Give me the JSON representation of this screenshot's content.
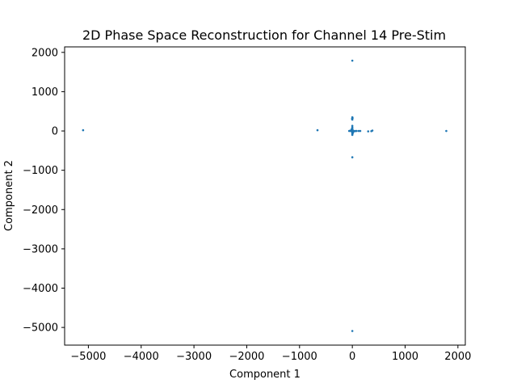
{
  "chart_data": {
    "type": "scatter",
    "title": "2D Phase Space Reconstruction for Channel 14 Pre-Stim",
    "xlabel": "Component 1",
    "ylabel": "Component 2",
    "xlim": [
      -5450,
      2140
    ],
    "ylim": [
      -5450,
      2140
    ],
    "xticks": [
      -5000,
      -4000,
      -3000,
      -2000,
      -1000,
      0,
      1000,
      2000
    ],
    "yticks": [
      -5000,
      -4000,
      -3000,
      -2000,
      -1000,
      0,
      1000,
      2000
    ],
    "xtick_labels": [
      "−5000",
      "−4000",
      "−3000",
      "−2000",
      "−1000",
      "0",
      "1000",
      "2000"
    ],
    "ytick_labels": [
      "−5000",
      "−4000",
      "−3000",
      "−2000",
      "−1000",
      "0",
      "1000",
      "2000"
    ],
    "grid": false,
    "marker_color": "#1f77b4",
    "points": [
      [
        0,
        1790
      ],
      [
        0,
        350
      ],
      [
        5,
        330
      ],
      [
        -5,
        310
      ],
      [
        0,
        290
      ],
      [
        0,
        130
      ],
      [
        0,
        90
      ],
      [
        0,
        60
      ],
      [
        0,
        40
      ],
      [
        0,
        20
      ],
      [
        0,
        0
      ],
      [
        0,
        -20
      ],
      [
        0,
        -40
      ],
      [
        0,
        -60
      ],
      [
        0,
        -80
      ],
      [
        0,
        -100
      ],
      [
        -10,
        50
      ],
      [
        10,
        -50
      ],
      [
        -20,
        10
      ],
      [
        20,
        -10
      ],
      [
        -30,
        0
      ],
      [
        30,
        0
      ],
      [
        -45,
        5
      ],
      [
        45,
        -5
      ],
      [
        60,
        0
      ],
      [
        -60,
        0
      ],
      [
        80,
        0
      ],
      [
        120,
        0
      ],
      [
        150,
        0
      ],
      [
        -15,
        25
      ],
      [
        15,
        -25
      ],
      [
        -8,
        -15
      ],
      [
        8,
        15
      ],
      [
        300,
        -10
      ],
      [
        360,
        -5
      ],
      [
        380,
        10
      ],
      [
        -660,
        20
      ],
      [
        -5100,
        20
      ],
      [
        1780,
        0
      ],
      [
        0,
        -670
      ],
      [
        0,
        -5090
      ]
    ]
  }
}
